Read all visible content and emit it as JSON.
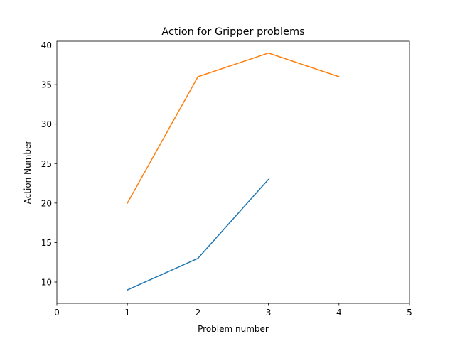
{
  "chart_data": {
    "type": "line",
    "title": "Action for Gripper problems",
    "xlabel": "Problem number",
    "ylabel": "Action Number",
    "xlim": [
      0,
      5
    ],
    "ylim": [
      7.3,
      40.5
    ],
    "xticks": [
      0,
      1,
      2,
      3,
      4,
      5
    ],
    "yticks": [
      10,
      15,
      20,
      25,
      30,
      35,
      40
    ],
    "grid": false,
    "legend": "none",
    "series": [
      {
        "color": "#1f77b4",
        "x": [
          1,
          2,
          3
        ],
        "y": [
          9,
          13,
          23
        ]
      },
      {
        "color": "#ff7f0e",
        "x": [
          1,
          2,
          3,
          4
        ],
        "y": [
          20,
          36,
          39,
          36
        ]
      }
    ]
  }
}
